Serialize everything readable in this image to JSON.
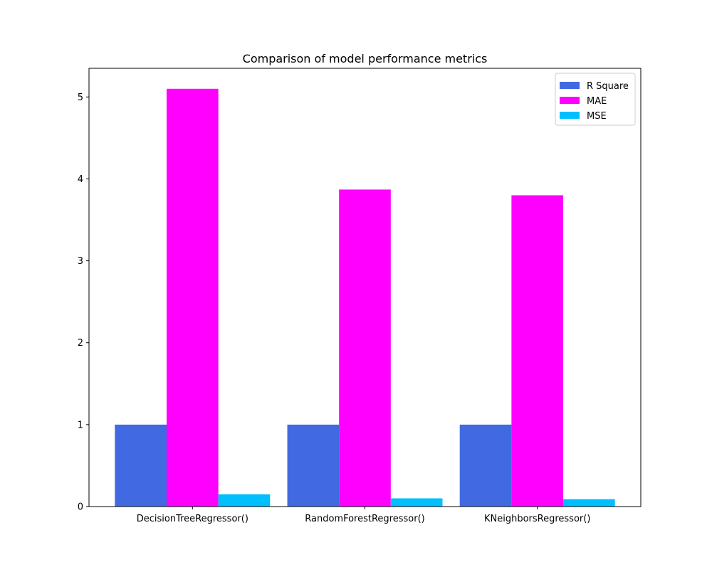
{
  "chart_data": {
    "type": "bar",
    "title": "Comparison of model performance metrics",
    "xlabel": "",
    "ylabel": "",
    "categories": [
      "DecisionTreeRegressor()",
      "RandomForestRegressor()",
      "KNeighborsRegressor()"
    ],
    "series": [
      {
        "name": "R Square",
        "color": "#4169e1",
        "values": [
          1.0,
          1.0,
          1.0
        ]
      },
      {
        "name": "MAE",
        "color": "#ff00ff",
        "values": [
          5.1,
          3.87,
          3.8
        ]
      },
      {
        "name": "MSE",
        "color": "#00bfff",
        "values": [
          0.15,
          0.1,
          0.09
        ]
      }
    ],
    "ylim": [
      0,
      5.35
    ],
    "yticks": [
      0,
      1,
      2,
      3,
      4,
      5
    ],
    "grid": false,
    "legend": "top-right"
  }
}
